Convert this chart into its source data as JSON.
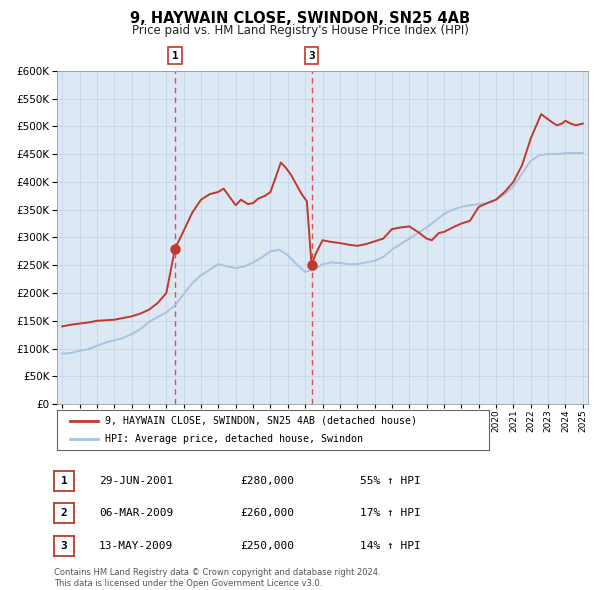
{
  "title": "9, HAYWAIN CLOSE, SWINDON, SN25 4AB",
  "subtitle": "Price paid vs. HM Land Registry's House Price Index (HPI)",
  "legend_line1": "9, HAYWAIN CLOSE, SWINDON, SN25 4AB (detached house)",
  "legend_line2": "HPI: Average price, detached house, Swindon",
  "footer1": "Contains HM Land Registry data © Crown copyright and database right 2024.",
  "footer2": "This data is licensed under the Open Government Licence v3.0.",
  "table": [
    {
      "num": "1",
      "date": "29-JUN-2001",
      "price": "£280,000",
      "pct": "55% ↑ HPI"
    },
    {
      "num": "2",
      "date": "06-MAR-2009",
      "price": "£260,000",
      "pct": "17% ↑ HPI"
    },
    {
      "num": "3",
      "date": "13-MAY-2009",
      "price": "£250,000",
      "pct": "14% ↑ HPI"
    }
  ],
  "marker1_x": 2001.5,
  "marker1_y": 280000,
  "marker3_x": 2009.37,
  "marker3_y": 250000,
  "vline1_x": 2001.5,
  "vline3_x": 2009.37,
  "hpi_color": "#a8c4e0",
  "price_color": "#c0392b",
  "marker_color": "#c0392b",
  "vline_color": "#e05050",
  "background_color": "#ffffff",
  "chart_bg_color": "#dde8f5",
  "grid_color": "#c5d5e8",
  "ylim": [
    0,
    600000
  ],
  "xlim_start": 1994.7,
  "xlim_end": 2025.3,
  "hpi_data": [
    [
      1995.0,
      91000
    ],
    [
      1995.5,
      92000
    ],
    [
      1996.0,
      96000
    ],
    [
      1996.5,
      99000
    ],
    [
      1997.0,
      105000
    ],
    [
      1997.5,
      111000
    ],
    [
      1998.0,
      115000
    ],
    [
      1998.5,
      119000
    ],
    [
      1999.0,
      126000
    ],
    [
      1999.5,
      135000
    ],
    [
      2000.0,
      148000
    ],
    [
      2000.5,
      157000
    ],
    [
      2001.0,
      165000
    ],
    [
      2001.5,
      178000
    ],
    [
      2002.0,
      198000
    ],
    [
      2002.5,
      218000
    ],
    [
      2003.0,
      232000
    ],
    [
      2003.5,
      242000
    ],
    [
      2004.0,
      252000
    ],
    [
      2004.5,
      248000
    ],
    [
      2005.0,
      245000
    ],
    [
      2005.5,
      248000
    ],
    [
      2006.0,
      255000
    ],
    [
      2006.5,
      264000
    ],
    [
      2007.0,
      275000
    ],
    [
      2007.5,
      278000
    ],
    [
      2008.0,
      268000
    ],
    [
      2008.5,
      252000
    ],
    [
      2009.0,
      238000
    ],
    [
      2009.5,
      242000
    ],
    [
      2010.0,
      252000
    ],
    [
      2010.5,
      255000
    ],
    [
      2011.0,
      254000
    ],
    [
      2011.5,
      252000
    ],
    [
      2012.0,
      252000
    ],
    [
      2012.5,
      255000
    ],
    [
      2013.0,
      258000
    ],
    [
      2013.5,
      265000
    ],
    [
      2014.0,
      278000
    ],
    [
      2014.5,
      288000
    ],
    [
      2015.0,
      298000
    ],
    [
      2015.5,
      308000
    ],
    [
      2016.0,
      318000
    ],
    [
      2016.5,
      330000
    ],
    [
      2017.0,
      342000
    ],
    [
      2017.5,
      350000
    ],
    [
      2018.0,
      355000
    ],
    [
      2018.5,
      358000
    ],
    [
      2019.0,
      360000
    ],
    [
      2019.5,
      362000
    ],
    [
      2020.0,
      368000
    ],
    [
      2020.5,
      378000
    ],
    [
      2021.0,
      392000
    ],
    [
      2021.5,
      415000
    ],
    [
      2022.0,
      438000
    ],
    [
      2022.5,
      448000
    ],
    [
      2023.0,
      450000
    ],
    [
      2023.5,
      450000
    ],
    [
      2024.0,
      452000
    ],
    [
      2024.5,
      452000
    ],
    [
      2025.0,
      452000
    ]
  ],
  "price_data": [
    [
      1995.0,
      140000
    ],
    [
      1995.5,
      143000
    ],
    [
      1996.0,
      145000
    ],
    [
      1996.5,
      147000
    ],
    [
      1997.0,
      150000
    ],
    [
      1997.5,
      151000
    ],
    [
      1998.0,
      152000
    ],
    [
      1998.5,
      155000
    ],
    [
      1999.0,
      158000
    ],
    [
      1999.5,
      163000
    ],
    [
      2000.0,
      170000
    ],
    [
      2000.5,
      182000
    ],
    [
      2001.0,
      200000
    ],
    [
      2001.5,
      280000
    ],
    [
      2002.0,
      312000
    ],
    [
      2002.5,
      345000
    ],
    [
      2003.0,
      368000
    ],
    [
      2003.5,
      378000
    ],
    [
      2004.0,
      382000
    ],
    [
      2004.3,
      388000
    ],
    [
      2004.6,
      375000
    ],
    [
      2005.0,
      358000
    ],
    [
      2005.3,
      368000
    ],
    [
      2005.7,
      360000
    ],
    [
      2006.0,
      362000
    ],
    [
      2006.3,
      370000
    ],
    [
      2006.7,
      375000
    ],
    [
      2007.0,
      382000
    ],
    [
      2007.3,
      408000
    ],
    [
      2007.6,
      435000
    ],
    [
      2007.9,
      425000
    ],
    [
      2008.2,
      412000
    ],
    [
      2008.5,
      395000
    ],
    [
      2008.8,
      378000
    ],
    [
      2009.1,
      365000
    ],
    [
      2009.37,
      250000
    ],
    [
      2009.6,
      270000
    ],
    [
      2010.0,
      295000
    ],
    [
      2010.5,
      292000
    ],
    [
      2011.0,
      290000
    ],
    [
      2011.5,
      287000
    ],
    [
      2012.0,
      285000
    ],
    [
      2012.5,
      288000
    ],
    [
      2013.0,
      293000
    ],
    [
      2013.5,
      298000
    ],
    [
      2014.0,
      315000
    ],
    [
      2014.5,
      318000
    ],
    [
      2015.0,
      320000
    ],
    [
      2015.5,
      310000
    ],
    [
      2016.0,
      298000
    ],
    [
      2016.3,
      295000
    ],
    [
      2016.7,
      308000
    ],
    [
      2017.0,
      310000
    ],
    [
      2017.5,
      318000
    ],
    [
      2018.0,
      325000
    ],
    [
      2018.5,
      330000
    ],
    [
      2019.0,
      355000
    ],
    [
      2019.5,
      362000
    ],
    [
      2020.0,
      368000
    ],
    [
      2020.5,
      382000
    ],
    [
      2021.0,
      400000
    ],
    [
      2021.5,
      430000
    ],
    [
      2022.0,
      478000
    ],
    [
      2022.3,
      500000
    ],
    [
      2022.6,
      522000
    ],
    [
      2022.9,
      515000
    ],
    [
      2023.2,
      508000
    ],
    [
      2023.5,
      502000
    ],
    [
      2023.8,
      505000
    ],
    [
      2024.0,
      510000
    ],
    [
      2024.3,
      505000
    ],
    [
      2024.6,
      502000
    ],
    [
      2025.0,
      505000
    ]
  ]
}
